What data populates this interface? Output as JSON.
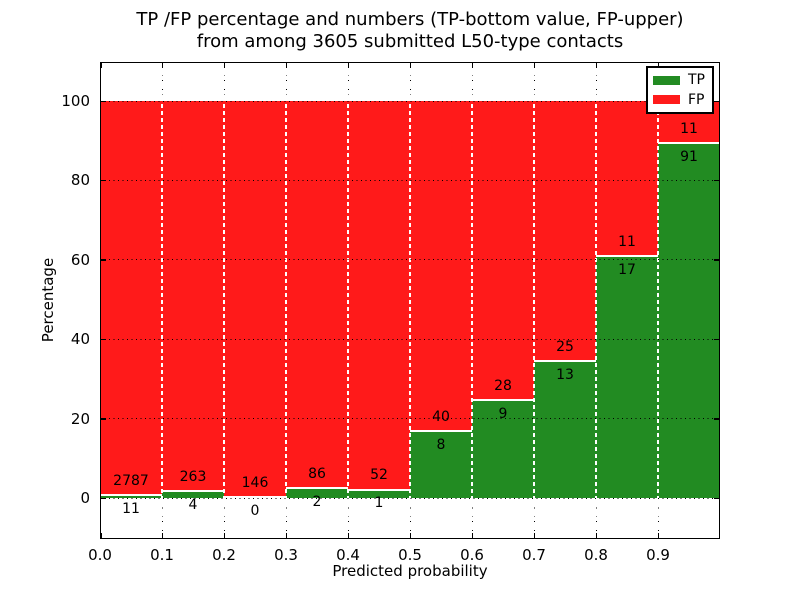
{
  "chart_data": {
    "type": "bar",
    "stacked": true,
    "title": "TP /FP percentage and numbers (TP-bottom value, FP-upper)",
    "subtitle": "from among 3605 submitted L50-type contacts",
    "xlabel": "Predicted probability",
    "ylabel": "Percentage",
    "total_contacts": 3605,
    "grid": "dotted",
    "xlim": [
      0.0,
      1.0
    ],
    "ylim": [
      -10.5,
      109.8
    ],
    "bin_edges": [
      0.0,
      0.1,
      0.2,
      0.3,
      0.4,
      0.5,
      0.6,
      0.7,
      0.8,
      0.9,
      1.0
    ],
    "x_tick_labels": [
      "0.0",
      "0.1",
      "0.2",
      "0.3",
      "0.4",
      "0.5",
      "0.6",
      "0.7",
      "0.8",
      "0.9"
    ],
    "y_tick_values": [
      0,
      20,
      40,
      60,
      80,
      100
    ],
    "y_tick_labels": [
      "0",
      "20",
      "40",
      "60",
      "80",
      "100"
    ],
    "series": [
      {
        "name": "TP",
        "color": "#228B22",
        "counts": [
          11,
          4,
          0,
          2,
          1,
          8,
          9,
          13,
          17,
          91
        ]
      },
      {
        "name": "FP",
        "color": "#FF1A1A",
        "counts": [
          2787,
          263,
          146,
          86,
          52,
          40,
          28,
          25,
          11,
          11
        ]
      }
    ],
    "tp_percent": [
      0.39,
      1.5,
      0.0,
      2.27,
      1.89,
      16.67,
      24.32,
      34.21,
      60.71,
      89.22
    ],
    "legend": {
      "position": "upper right",
      "entries": [
        {
          "label": "TP",
          "color": "#228B22"
        },
        {
          "label": "FP",
          "color": "#FF1A1A"
        }
      ]
    }
  }
}
